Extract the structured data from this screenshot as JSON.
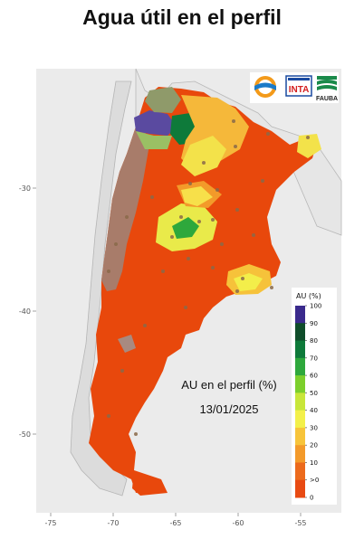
{
  "title": "Agua útil en el perfil",
  "map": {
    "overlay_line1": "AU en el perfil (%)",
    "overlay_line2": "13/01/2025",
    "x_ticks": [
      "-75",
      "-70",
      "-65",
      "-60",
      "-55"
    ],
    "y_ticks": [
      "-30",
      "-40",
      "-50"
    ]
  },
  "legend": {
    "title": "AU (%)",
    "labels": [
      "100",
      "90",
      "80",
      "70",
      "60",
      "50",
      "40",
      "30",
      "20",
      "10",
      ">0",
      "0"
    ],
    "colors": [
      "#3a2a8c",
      "#0f4d2a",
      "#0e7a3a",
      "#2ea83c",
      "#7ccf2c",
      "#c8e63a",
      "#f3f04a",
      "#f7c43a",
      "#f39a2a",
      "#ec6a1c",
      "#e84a12",
      "#e03a08"
    ]
  },
  "logos": {
    "inta": "INTA",
    "fauba": "FAUBA"
  }
}
